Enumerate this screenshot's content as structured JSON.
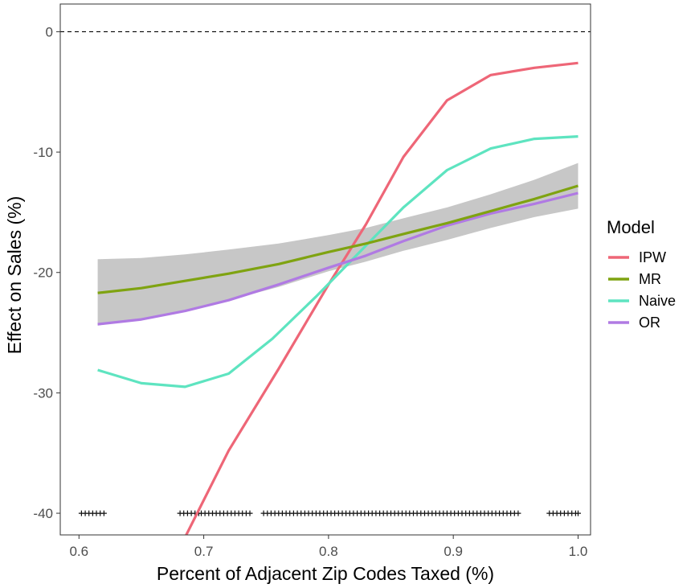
{
  "chart_data": {
    "type": "line",
    "title": "",
    "xlabel": "Percent of Adjacent Zip Codes Taxed (%)",
    "ylabel": "Effect on Sales (%)",
    "xlim": [
      0.585,
      1.01
    ],
    "ylim": [
      -41.8,
      2.3
    ],
    "x_ticks": [
      0.6,
      0.7,
      0.8,
      0.9,
      1.0
    ],
    "x_tick_labels": [
      "0.6",
      "0.7",
      "0.8",
      "0.9",
      "1.0"
    ],
    "y_ticks": [
      0,
      -10,
      -20,
      -30,
      -40
    ],
    "y_tick_labels": [
      "0",
      "-10",
      "-20",
      "-30",
      "-40"
    ],
    "grid": false,
    "reference_line": {
      "y": 0,
      "style": "dashed"
    },
    "legend": {
      "title": "Model",
      "position": "right",
      "entries": [
        "IPW",
        "MR",
        "Naive",
        "OR"
      ]
    },
    "series": [
      {
        "name": "IPW",
        "color": "#EE6677",
        "x": [
          0.685,
          0.72,
          0.76,
          0.8,
          0.83,
          0.86,
          0.895,
          0.93,
          0.965,
          1.0
        ],
        "y": [
          -42.0,
          -34.8,
          -28.0,
          -21.0,
          -16.0,
          -10.4,
          -5.7,
          -3.6,
          -3.0,
          -2.6
        ]
      },
      {
        "name": "MR",
        "color": "#7FA311",
        "x": [
          0.615,
          0.65,
          0.685,
          0.72,
          0.76,
          0.8,
          0.83,
          0.86,
          0.895,
          0.93,
          0.965,
          1.0
        ],
        "y": [
          -21.7,
          -21.3,
          -20.7,
          -20.1,
          -19.3,
          -18.3,
          -17.6,
          -16.8,
          -15.9,
          -14.9,
          -13.9,
          -12.8
        ]
      },
      {
        "name": "Naive",
        "color": "#5EE4C0",
        "x": [
          0.615,
          0.65,
          0.685,
          0.72,
          0.755,
          0.79,
          0.825,
          0.86,
          0.895,
          0.93,
          0.965,
          1.0
        ],
        "y": [
          -28.1,
          -29.2,
          -29.5,
          -28.4,
          -25.5,
          -22.0,
          -18.3,
          -14.6,
          -11.5,
          -9.7,
          -8.9,
          -8.7
        ]
      },
      {
        "name": "OR",
        "color": "#B07AE3",
        "x": [
          0.615,
          0.65,
          0.685,
          0.72,
          0.76,
          0.8,
          0.83,
          0.86,
          0.895,
          0.93,
          0.965,
          1.0
        ],
        "y": [
          -24.3,
          -23.9,
          -23.2,
          -22.3,
          -21.0,
          -19.6,
          -18.6,
          -17.4,
          -16.1,
          -15.1,
          -14.3,
          -13.4
        ]
      }
    ],
    "confidence_band": {
      "series": "MR",
      "color": "#BDBDBD",
      "x": [
        0.615,
        0.65,
        0.685,
        0.72,
        0.76,
        0.8,
        0.83,
        0.86,
        0.895,
        0.93,
        0.965,
        1.0
      ],
      "upper": [
        -18.9,
        -18.8,
        -18.5,
        -18.1,
        -17.6,
        -16.9,
        -16.3,
        -15.5,
        -14.6,
        -13.5,
        -12.3,
        -10.9
      ],
      "lower": [
        -24.4,
        -23.9,
        -23.1,
        -22.3,
        -21.2,
        -19.9,
        -19.1,
        -18.2,
        -17.3,
        -16.3,
        -15.4,
        -14.7
      ]
    },
    "rug": {
      "y": -40,
      "x": [
        0.602,
        0.605,
        0.608,
        0.611,
        0.614,
        0.617,
        0.62,
        0.681,
        0.684,
        0.687,
        0.69,
        0.693,
        0.696,
        0.698,
        0.701,
        0.704,
        0.707,
        0.71,
        0.713,
        0.716,
        0.719,
        0.722,
        0.725,
        0.728,
        0.731,
        0.734,
        0.737,
        0.748,
        0.751,
        0.754,
        0.757,
        0.76,
        0.763,
        0.766,
        0.769,
        0.772,
        0.775,
        0.778,
        0.781,
        0.784,
        0.787,
        0.79,
        0.793,
        0.796,
        0.799,
        0.802,
        0.805,
        0.808,
        0.811,
        0.814,
        0.817,
        0.82,
        0.823,
        0.826,
        0.829,
        0.832,
        0.835,
        0.838,
        0.841,
        0.844,
        0.847,
        0.85,
        0.853,
        0.856,
        0.859,
        0.862,
        0.865,
        0.868,
        0.871,
        0.874,
        0.877,
        0.88,
        0.883,
        0.886,
        0.889,
        0.892,
        0.895,
        0.898,
        0.901,
        0.904,
        0.907,
        0.91,
        0.913,
        0.916,
        0.919,
        0.922,
        0.925,
        0.928,
        0.931,
        0.934,
        0.937,
        0.94,
        0.943,
        0.946,
        0.949,
        0.952,
        0.977,
        0.98,
        0.983,
        0.986,
        0.989,
        0.992,
        0.995,
        0.998,
        1.0
      ]
    }
  }
}
